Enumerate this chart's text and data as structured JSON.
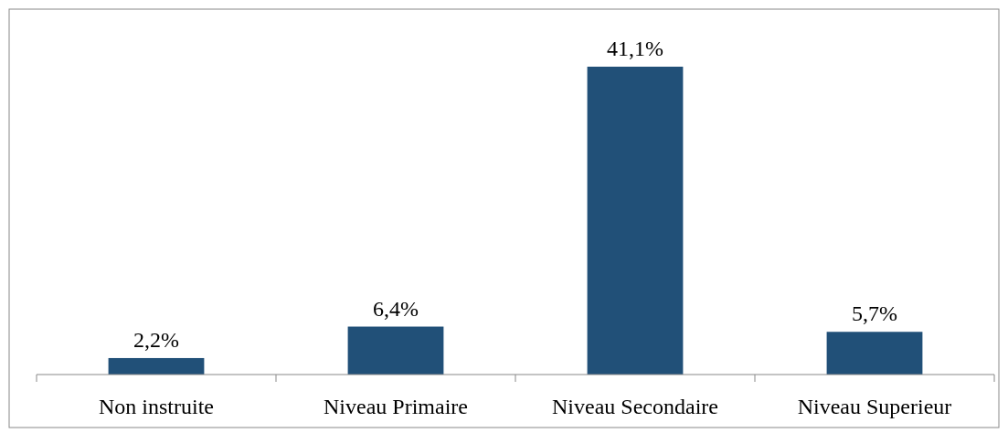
{
  "chart_data": {
    "type": "bar",
    "categories": [
      "Non instruite",
      "Niveau Primaire",
      "Niveau Secondaire",
      "Niveau Superieur"
    ],
    "values": [
      2.2,
      6.4,
      41.1,
      5.7
    ],
    "value_labels": [
      "2,2%",
      "6,4%",
      "41,1%",
      "5,7%"
    ],
    "color": "#215078"
  }
}
